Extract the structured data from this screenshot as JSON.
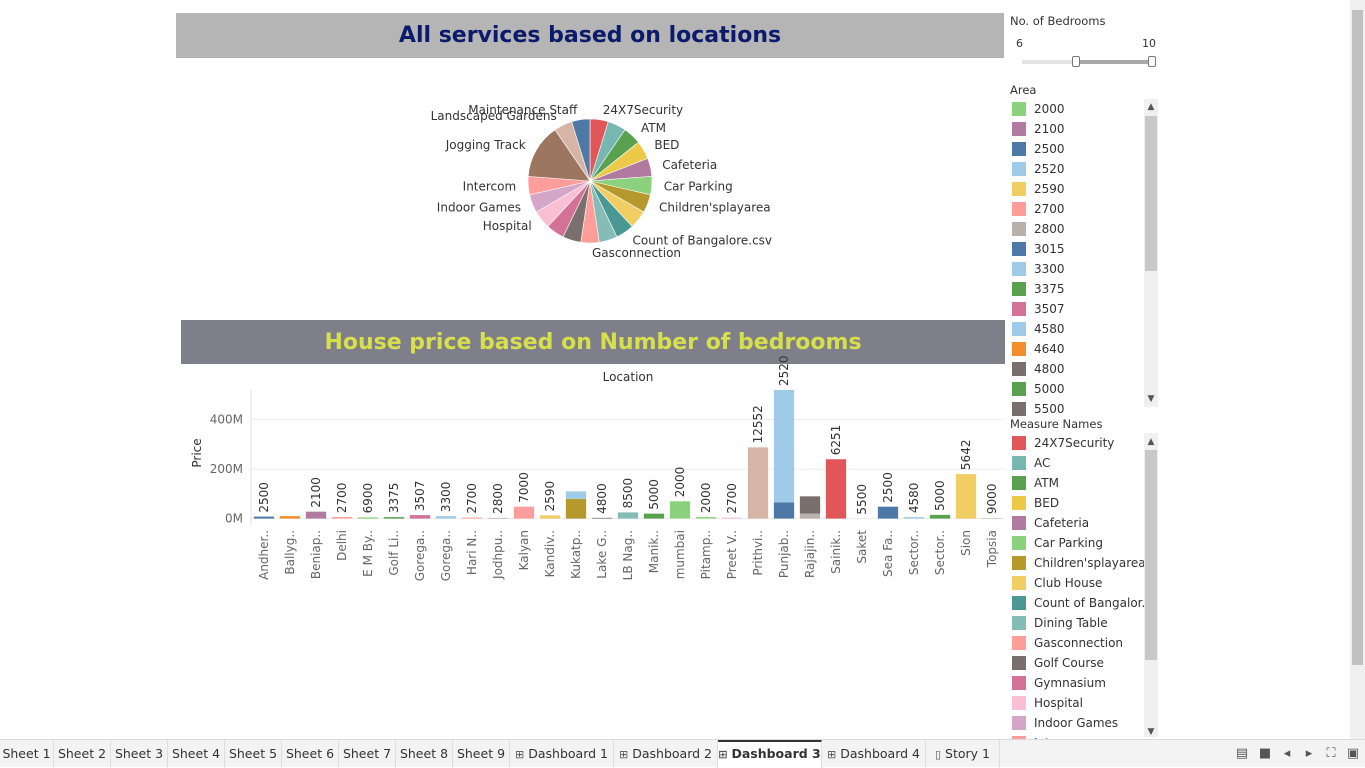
{
  "dashboard": {
    "pie_title": "All services based on locations",
    "bar_title": "House price based on Number of bedrooms",
    "title_colors": {
      "pie_title": "#0b1a6b",
      "bar_title": "#d7e04b"
    }
  },
  "bedrooms_filter": {
    "title": "No. of Bedrooms",
    "min_label": "6",
    "max_label": "10",
    "range_fraction": [
      0.4,
      1.0
    ]
  },
  "area_legend": {
    "title": "Area",
    "items": [
      {
        "label": "2000",
        "color": "#8cd17d"
      },
      {
        "label": "2100",
        "color": "#b07aa1"
      },
      {
        "label": "2500",
        "color": "#4e79a7"
      },
      {
        "label": "2520",
        "color": "#a0cbe8"
      },
      {
        "label": "2590",
        "color": "#f1ce63"
      },
      {
        "label": "2700",
        "color": "#ff9d9a"
      },
      {
        "label": "2800",
        "color": "#bab0ac"
      },
      {
        "label": "3015",
        "color": "#4e79a7"
      },
      {
        "label": "3300",
        "color": "#a0cbe8"
      },
      {
        "label": "3375",
        "color": "#59a14f"
      },
      {
        "label": "3507",
        "color": "#d37295"
      },
      {
        "label": "4580",
        "color": "#a0cbe8"
      },
      {
        "label": "4640",
        "color": "#f28e2b"
      },
      {
        "label": "4800",
        "color": "#79706e"
      },
      {
        "label": "5000",
        "color": "#59a14f"
      },
      {
        "label": "5500",
        "color": "#79706e"
      }
    ]
  },
  "measure_legend": {
    "title": "Measure Names",
    "items": [
      {
        "label": "24X7Security",
        "color": "#e15759"
      },
      {
        "label": "AC",
        "color": "#76b7b2"
      },
      {
        "label": "ATM",
        "color": "#59a14f"
      },
      {
        "label": "BED",
        "color": "#edc948"
      },
      {
        "label": "Cafeteria",
        "color": "#b07aa1"
      },
      {
        "label": "Car Parking",
        "color": "#8cd17d"
      },
      {
        "label": "Children'splayarea",
        "color": "#b6992d"
      },
      {
        "label": "Club House",
        "color": "#f1ce63"
      },
      {
        "label": "Count of Bangalor..",
        "color": "#499894"
      },
      {
        "label": "Dining Table",
        "color": "#86bcb6"
      },
      {
        "label": "Gasconnection",
        "color": "#ff9d9a"
      },
      {
        "label": "Golf Course",
        "color": "#79706e"
      },
      {
        "label": "Gymnasium",
        "color": "#d37295"
      },
      {
        "label": "Hospital",
        "color": "#fabfd2"
      },
      {
        "label": "Indoor Games",
        "color": "#d4a6c8"
      },
      {
        "label": "Intercom",
        "color": "#ff9d9a"
      }
    ]
  },
  "tabs": [
    {
      "label": "Sheet 1",
      "icon": ""
    },
    {
      "label": "Sheet 2",
      "icon": ""
    },
    {
      "label": "Sheet 3",
      "icon": ""
    },
    {
      "label": "Sheet 4",
      "icon": ""
    },
    {
      "label": "Sheet 5",
      "icon": ""
    },
    {
      "label": "Sheet 6",
      "icon": ""
    },
    {
      "label": "Sheet 7",
      "icon": ""
    },
    {
      "label": "Sheet 8",
      "icon": ""
    },
    {
      "label": "Sheet 9",
      "icon": ""
    },
    {
      "label": "Dashboard 1",
      "icon": "dashboard-icon"
    },
    {
      "label": "Dashboard 2",
      "icon": "dashboard-icon"
    },
    {
      "label": "Dashboard 3",
      "icon": "dashboard-icon",
      "active": true
    },
    {
      "label": "Dashboard 4",
      "icon": "dashboard-icon"
    },
    {
      "label": "Story 1",
      "icon": "story-icon"
    }
  ],
  "bottom_icons": [
    "show-sheets-icon",
    "grid-icon",
    "prev-icon",
    "next-icon",
    "fullscreen-icon",
    "present-icon"
  ],
  "chart_data": [
    {
      "type": "pie",
      "title": "All services based on locations",
      "slices": [
        {
          "label": "24X7Security",
          "value": 1,
          "color": "#e15759"
        },
        {
          "label": "AC",
          "value": 1,
          "color": "#76b7b2"
        },
        {
          "label": "ATM",
          "value": 1,
          "color": "#59a14f"
        },
        {
          "label": "BED",
          "value": 1,
          "color": "#edc948"
        },
        {
          "label": "Cafeteria",
          "value": 1,
          "color": "#b07aa1"
        },
        {
          "label": "Car Parking",
          "value": 1,
          "color": "#8cd17d"
        },
        {
          "label": "Children'splayarea",
          "value": 1,
          "color": "#b6992d"
        },
        {
          "label": "Club House",
          "value": 1,
          "color": "#f1ce63"
        },
        {
          "label": "Count of Bangalore.csv",
          "value": 1,
          "color": "#499894"
        },
        {
          "label": "Dining Table",
          "value": 1,
          "color": "#86bcb6"
        },
        {
          "label": "Gasconnection",
          "value": 1,
          "color": "#ff9d9a"
        },
        {
          "label": "Golf Course",
          "value": 1,
          "color": "#79706e"
        },
        {
          "label": "Gymnasium",
          "value": 1,
          "color": "#d37295"
        },
        {
          "label": "Hospital",
          "value": 1,
          "color": "#fabfd2"
        },
        {
          "label": "Indoor Games",
          "value": 1,
          "color": "#d4a6c8"
        },
        {
          "label": "Intercom",
          "value": 1,
          "color": "#ff9d9a"
        },
        {
          "label": "Jogging Track",
          "value": 3,
          "color": "#9d7660"
        },
        {
          "label": "Landscaped Gardens",
          "value": 1,
          "color": "#d7b5a6"
        },
        {
          "label": "Maintenance Staff",
          "value": 1,
          "color": "#4e79a7"
        }
      ],
      "shown_labels": [
        "24X7Security",
        "ATM",
        "BED",
        "Cafeteria",
        "Car Parking",
        "Children'splayarea",
        "Count of Bangalore.csv",
        "Gasconnection",
        "Hospital",
        "Indoor Games",
        "Intercom",
        "Jogging Track",
        "Landscaped Gardens",
        "Maintenance Staff"
      ]
    },
    {
      "type": "bar",
      "title": "House price based on Number of bedrooms",
      "xlabel": "Location",
      "ylabel": "Price",
      "ylim": [
        -30,
        520
      ],
      "y_ticks": [
        {
          "value": 0,
          "label": "0M"
        },
        {
          "value": 200,
          "label": "200M"
        },
        {
          "value": 400,
          "label": "400M"
        }
      ],
      "categories": [
        "Andher..",
        "Ballyg..",
        "Beniap..",
        "Delhi",
        "E M By..",
        "Golf Li..",
        "Gorega..",
        "Gorega..",
        "Hari N..",
        "Jodhpu..",
        "Kalyan",
        "Kandiv..",
        "Kukatp..",
        "Lake G..",
        "LB Nag..",
        "Manik..",
        "mumbai",
        "Pitamp..",
        "Preet V..",
        "Prithvi..",
        "Punjab..",
        "Rajajin..",
        "Sainik..",
        "Saket",
        "Sea Fa..",
        "Sector..",
        "Sector..",
        "Sion",
        "Topsia"
      ],
      "bars": [
        {
          "stack": [
            {
              "value": 8,
              "color": "#4e79a7"
            }
          ],
          "label": "2500"
        },
        {
          "stack": [
            {
              "value": 10,
              "color": "#f28e2b"
            }
          ],
          "label": ""
        },
        {
          "stack": [
            {
              "value": 28,
              "color": "#b07aa1"
            }
          ],
          "label": "2100"
        },
        {
          "stack": [
            {
              "value": 6,
              "color": "#ff9d9a"
            }
          ],
          "label": "2700"
        },
        {
          "stack": [
            {
              "value": 5,
              "color": "#8cd17d"
            }
          ],
          "label": "6900"
        },
        {
          "stack": [
            {
              "value": 6,
              "color": "#59a14f"
            }
          ],
          "label": "3375"
        },
        {
          "stack": [
            {
              "value": 14,
              "color": "#d37295"
            }
          ],
          "label": "3507"
        },
        {
          "stack": [
            {
              "value": 10,
              "color": "#a0cbe8"
            }
          ],
          "label": "3300"
        },
        {
          "stack": [
            {
              "value": 4,
              "color": "#ff9d9a"
            }
          ],
          "label": "2700"
        },
        {
          "stack": [
            {
              "value": 3,
              "color": "#bab0ac"
            }
          ],
          "label": "2800"
        },
        {
          "stack": [
            {
              "value": 48,
              "color": "#ff9d9a"
            }
          ],
          "label": "7000"
        },
        {
          "stack": [
            {
              "value": 13,
              "color": "#f1ce63"
            }
          ],
          "label": "2590"
        },
        {
          "stack": [
            {
              "value": 80,
              "color": "#b6992d"
            },
            {
              "value": 30,
              "color": "#a0cbe8"
            }
          ],
          "label": ""
        },
        {
          "stack": [
            {
              "value": 3,
              "color": "#79706e"
            }
          ],
          "label": "4800"
        },
        {
          "stack": [
            {
              "value": 25,
              "color": "#86bcb6"
            }
          ],
          "label": "8500"
        },
        {
          "stack": [
            {
              "value": 20,
              "color": "#59a14f"
            }
          ],
          "label": "5000"
        },
        {
          "stack": [
            {
              "value": 70,
              "color": "#8cd17d"
            }
          ],
          "label": "2000"
        },
        {
          "stack": [
            {
              "value": 6,
              "color": "#8cd17d"
            }
          ],
          "label": "2000"
        },
        {
          "stack": [
            {
              "value": 4,
              "color": "#fabfd2"
            }
          ],
          "label": "2700"
        },
        {
          "stack": [
            {
              "value": 288,
              "color": "#d7b5a6"
            }
          ],
          "label": "12552"
        },
        {
          "stack": [
            {
              "value": 65,
              "color": "#4e79a7"
            },
            {
              "value": 455,
              "color": "#a0cbe8"
            }
          ],
          "label": "2520"
        },
        {
          "stack": [
            {
              "value": 20,
              "color": "#bab0ac"
            },
            {
              "value": 70,
              "color": "#79706e"
            }
          ],
          "label": ""
        },
        {
          "stack": [
            {
              "value": 240,
              "color": "#e15759"
            }
          ],
          "label": "6251"
        },
        {
          "stack": [
            {
              "value": 0,
              "color": "#79706e"
            }
          ],
          "label": "5500"
        },
        {
          "stack": [
            {
              "value": 48,
              "color": "#4e79a7"
            }
          ],
          "label": "2500"
        },
        {
          "stack": [
            {
              "value": 6,
              "color": "#a0cbe8"
            }
          ],
          "label": "4580"
        },
        {
          "stack": [
            {
              "value": 15,
              "color": "#59a14f"
            }
          ],
          "label": "5000"
        },
        {
          "stack": [
            {
              "value": 180,
              "color": "#f1ce63"
            }
          ],
          "label": "5642"
        },
        {
          "stack": [
            {
              "value": 2,
              "color": "#bab0ac"
            }
          ],
          "label": "9000"
        }
      ]
    }
  ]
}
